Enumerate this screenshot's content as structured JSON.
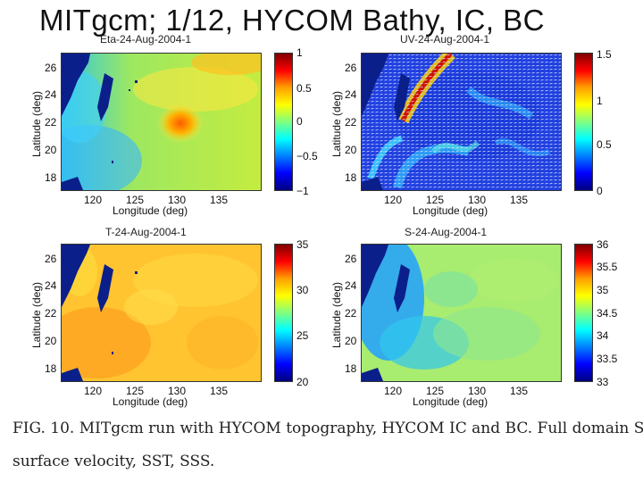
{
  "slide": {
    "title": "MITgcm; 1/12, HYCOM Bathy, IC, BC"
  },
  "caption": {
    "line1": "FIG. 10.  MITgcm run with HYCOM topography, HYCOM IC and BC. Full domain SSH,",
    "line2": "surface velocity, SST, SSS."
  },
  "axes": {
    "xlabel": "Longitude (deg)",
    "ylabel": "Latitude (deg)",
    "xticks": [
      "120",
      "125",
      "130",
      "135"
    ],
    "yticks": [
      "26",
      "24",
      "22",
      "20",
      "18"
    ]
  },
  "panels": [
    {
      "title": "Eta-24-Aug-2004-1",
      "cbar_ticks": [
        "1",
        "0.5",
        "0",
        "−0.5",
        "−1"
      ],
      "clim": [
        -1,
        1
      ]
    },
    {
      "title": "UV-24-Aug-2004-1",
      "cbar_ticks": [
        "1.5",
        "1",
        "0.5",
        "0"
      ],
      "clim": [
        0,
        1.5
      ]
    },
    {
      "title": "T-24-Aug-2004-1",
      "cbar_ticks": [
        "35",
        "30",
        "25",
        "20"
      ],
      "clim": [
        20,
        35
      ]
    },
    {
      "title": "S-24-Aug-2004-1",
      "cbar_ticks": [
        "36",
        "35.5",
        "35",
        "34.5",
        "34",
        "33.5",
        "33"
      ],
      "clim": [
        33,
        36
      ]
    }
  ],
  "colors": {
    "land": "#0b1f8a",
    "frame": "#333333"
  }
}
